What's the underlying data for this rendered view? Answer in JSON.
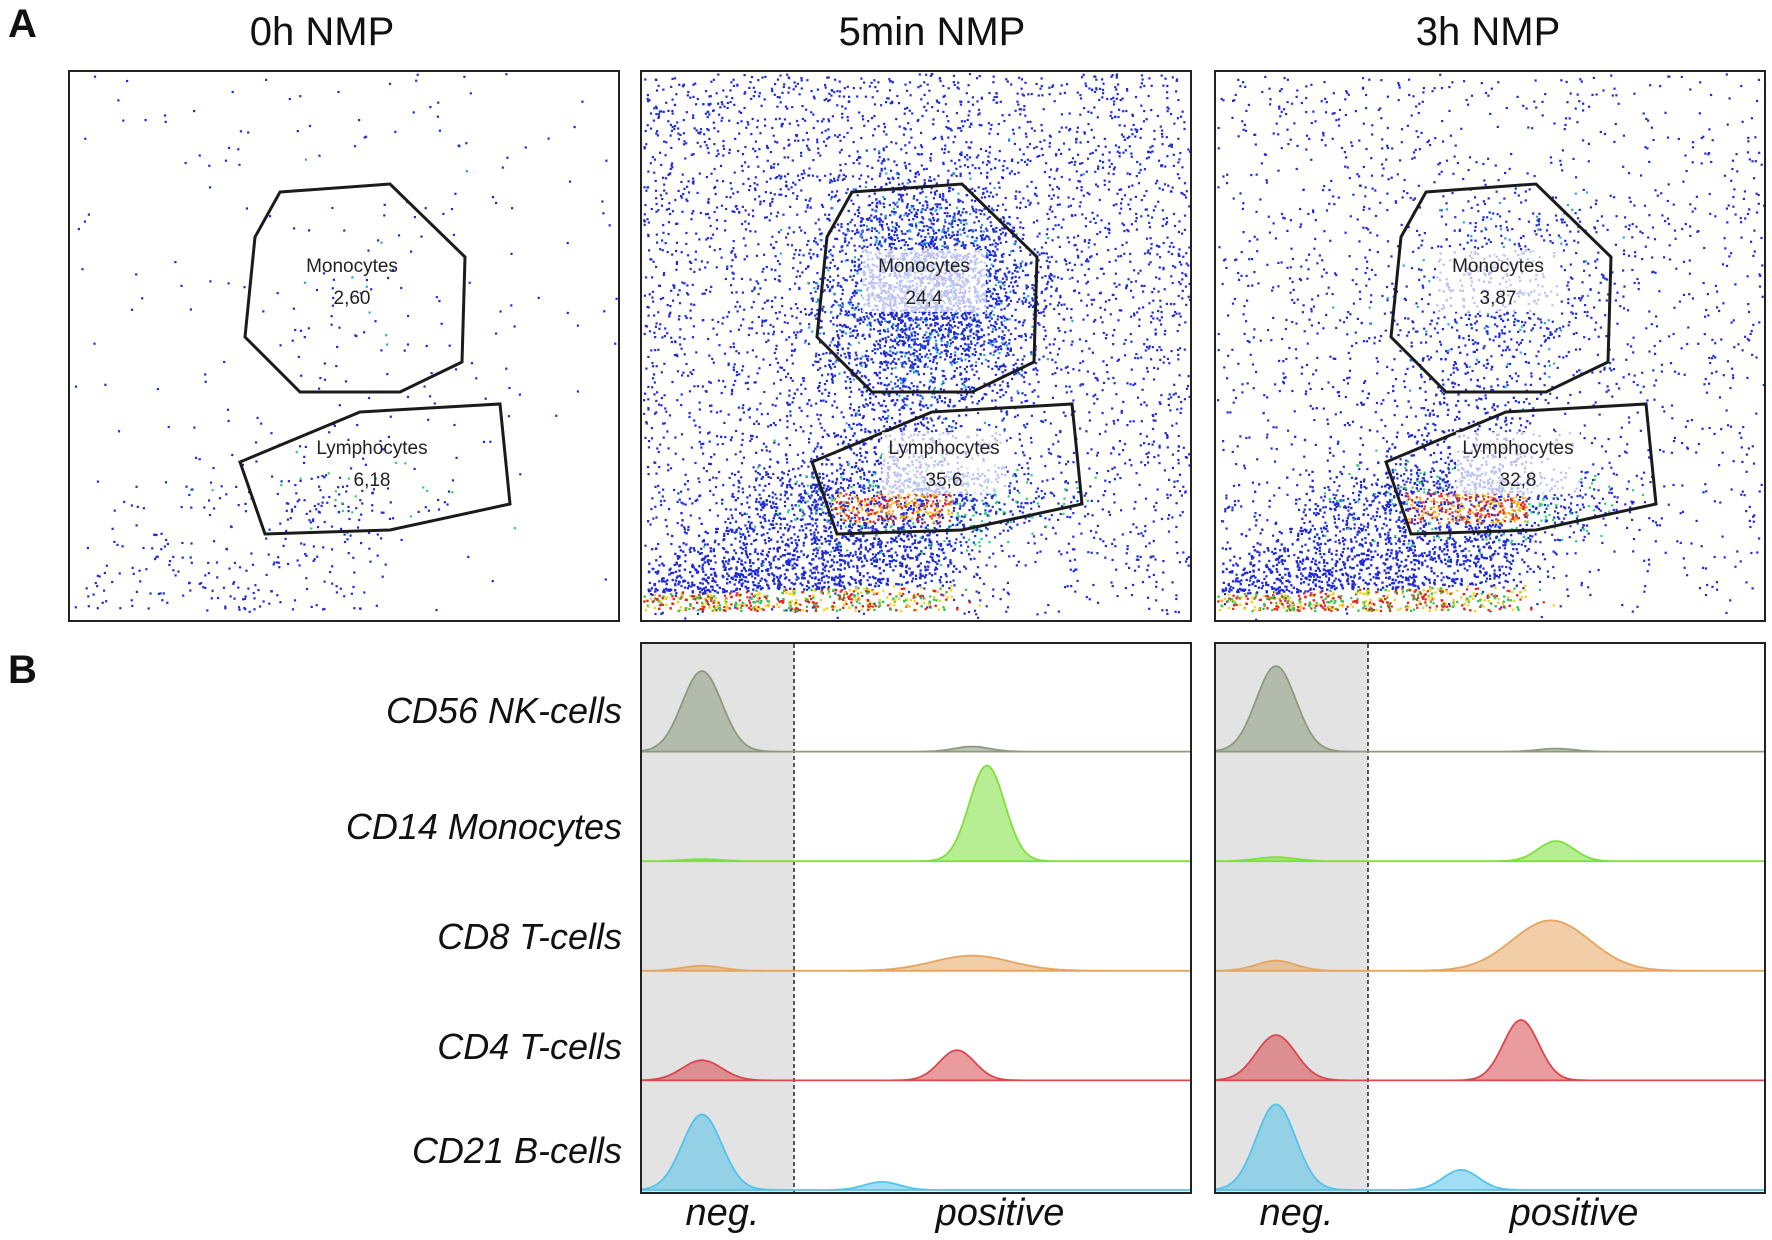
{
  "figure": {
    "panel_a_letter": "A",
    "panel_b_letter": "B",
    "b_x_labels": [
      "neg.",
      "positive"
    ]
  },
  "colors": {
    "frame": "#222222",
    "neg_shade": "#e3e3e3",
    "CD56": "#8d9a7f",
    "CD14": "#7ee03a",
    "CD8": "#e5a55f",
    "CD4": "#d9484f",
    "CD21": "#53c3ea"
  },
  "chart_data": [
    {
      "type": "scatter",
      "title": "0h NMP",
      "gates": [
        {
          "name": "Monocytes",
          "value": "2,60"
        },
        {
          "name": "Lymphocytes",
          "value": "6,18"
        }
      ]
    },
    {
      "type": "scatter",
      "title": "5min NMP",
      "gates": [
        {
          "name": "Monocytes",
          "value": "24,4"
        },
        {
          "name": "Lymphocytes",
          "value": "35,6"
        }
      ]
    },
    {
      "type": "scatter",
      "title": "3h NMP",
      "gates": [
        {
          "name": "Monocytes",
          "value": "3,87"
        },
        {
          "name": "Lymphocytes",
          "value": "32,8"
        }
      ]
    },
    {
      "type": "area",
      "panel": "B",
      "timepoint": "5min NMP",
      "x_regions": [
        "neg.",
        "positive"
      ],
      "series": [
        {
          "name": "CD56 NK-cells",
          "neg_peak": 0.8,
          "pos_peak": 0.05
        },
        {
          "name": "CD14 Monocytes",
          "neg_peak": 0.02,
          "pos_peak": 0.95
        },
        {
          "name": "CD8 T-cells",
          "neg_peak": 0.05,
          "pos_peak": 0.15
        },
        {
          "name": "CD4 T-cells",
          "neg_peak": 0.2,
          "pos_peak": 0.3
        },
        {
          "name": "CD21 B-cells",
          "neg_peak": 0.75,
          "pos_peak": 0.08
        }
      ]
    },
    {
      "type": "area",
      "panel": "B",
      "timepoint": "3h NMP",
      "x_regions": [
        "neg.",
        "positive"
      ],
      "series": [
        {
          "name": "CD56 NK-cells",
          "neg_peak": 0.85,
          "pos_peak": 0.03
        },
        {
          "name": "CD14 Monocytes",
          "neg_peak": 0.04,
          "pos_peak": 0.2
        },
        {
          "name": "CD8 T-cells",
          "neg_peak": 0.1,
          "pos_peak": 0.5
        },
        {
          "name": "CD4 T-cells",
          "neg_peak": 0.45,
          "pos_peak": 0.6
        },
        {
          "name": "CD21 B-cells",
          "neg_peak": 0.85,
          "pos_peak": 0.2
        }
      ]
    }
  ]
}
